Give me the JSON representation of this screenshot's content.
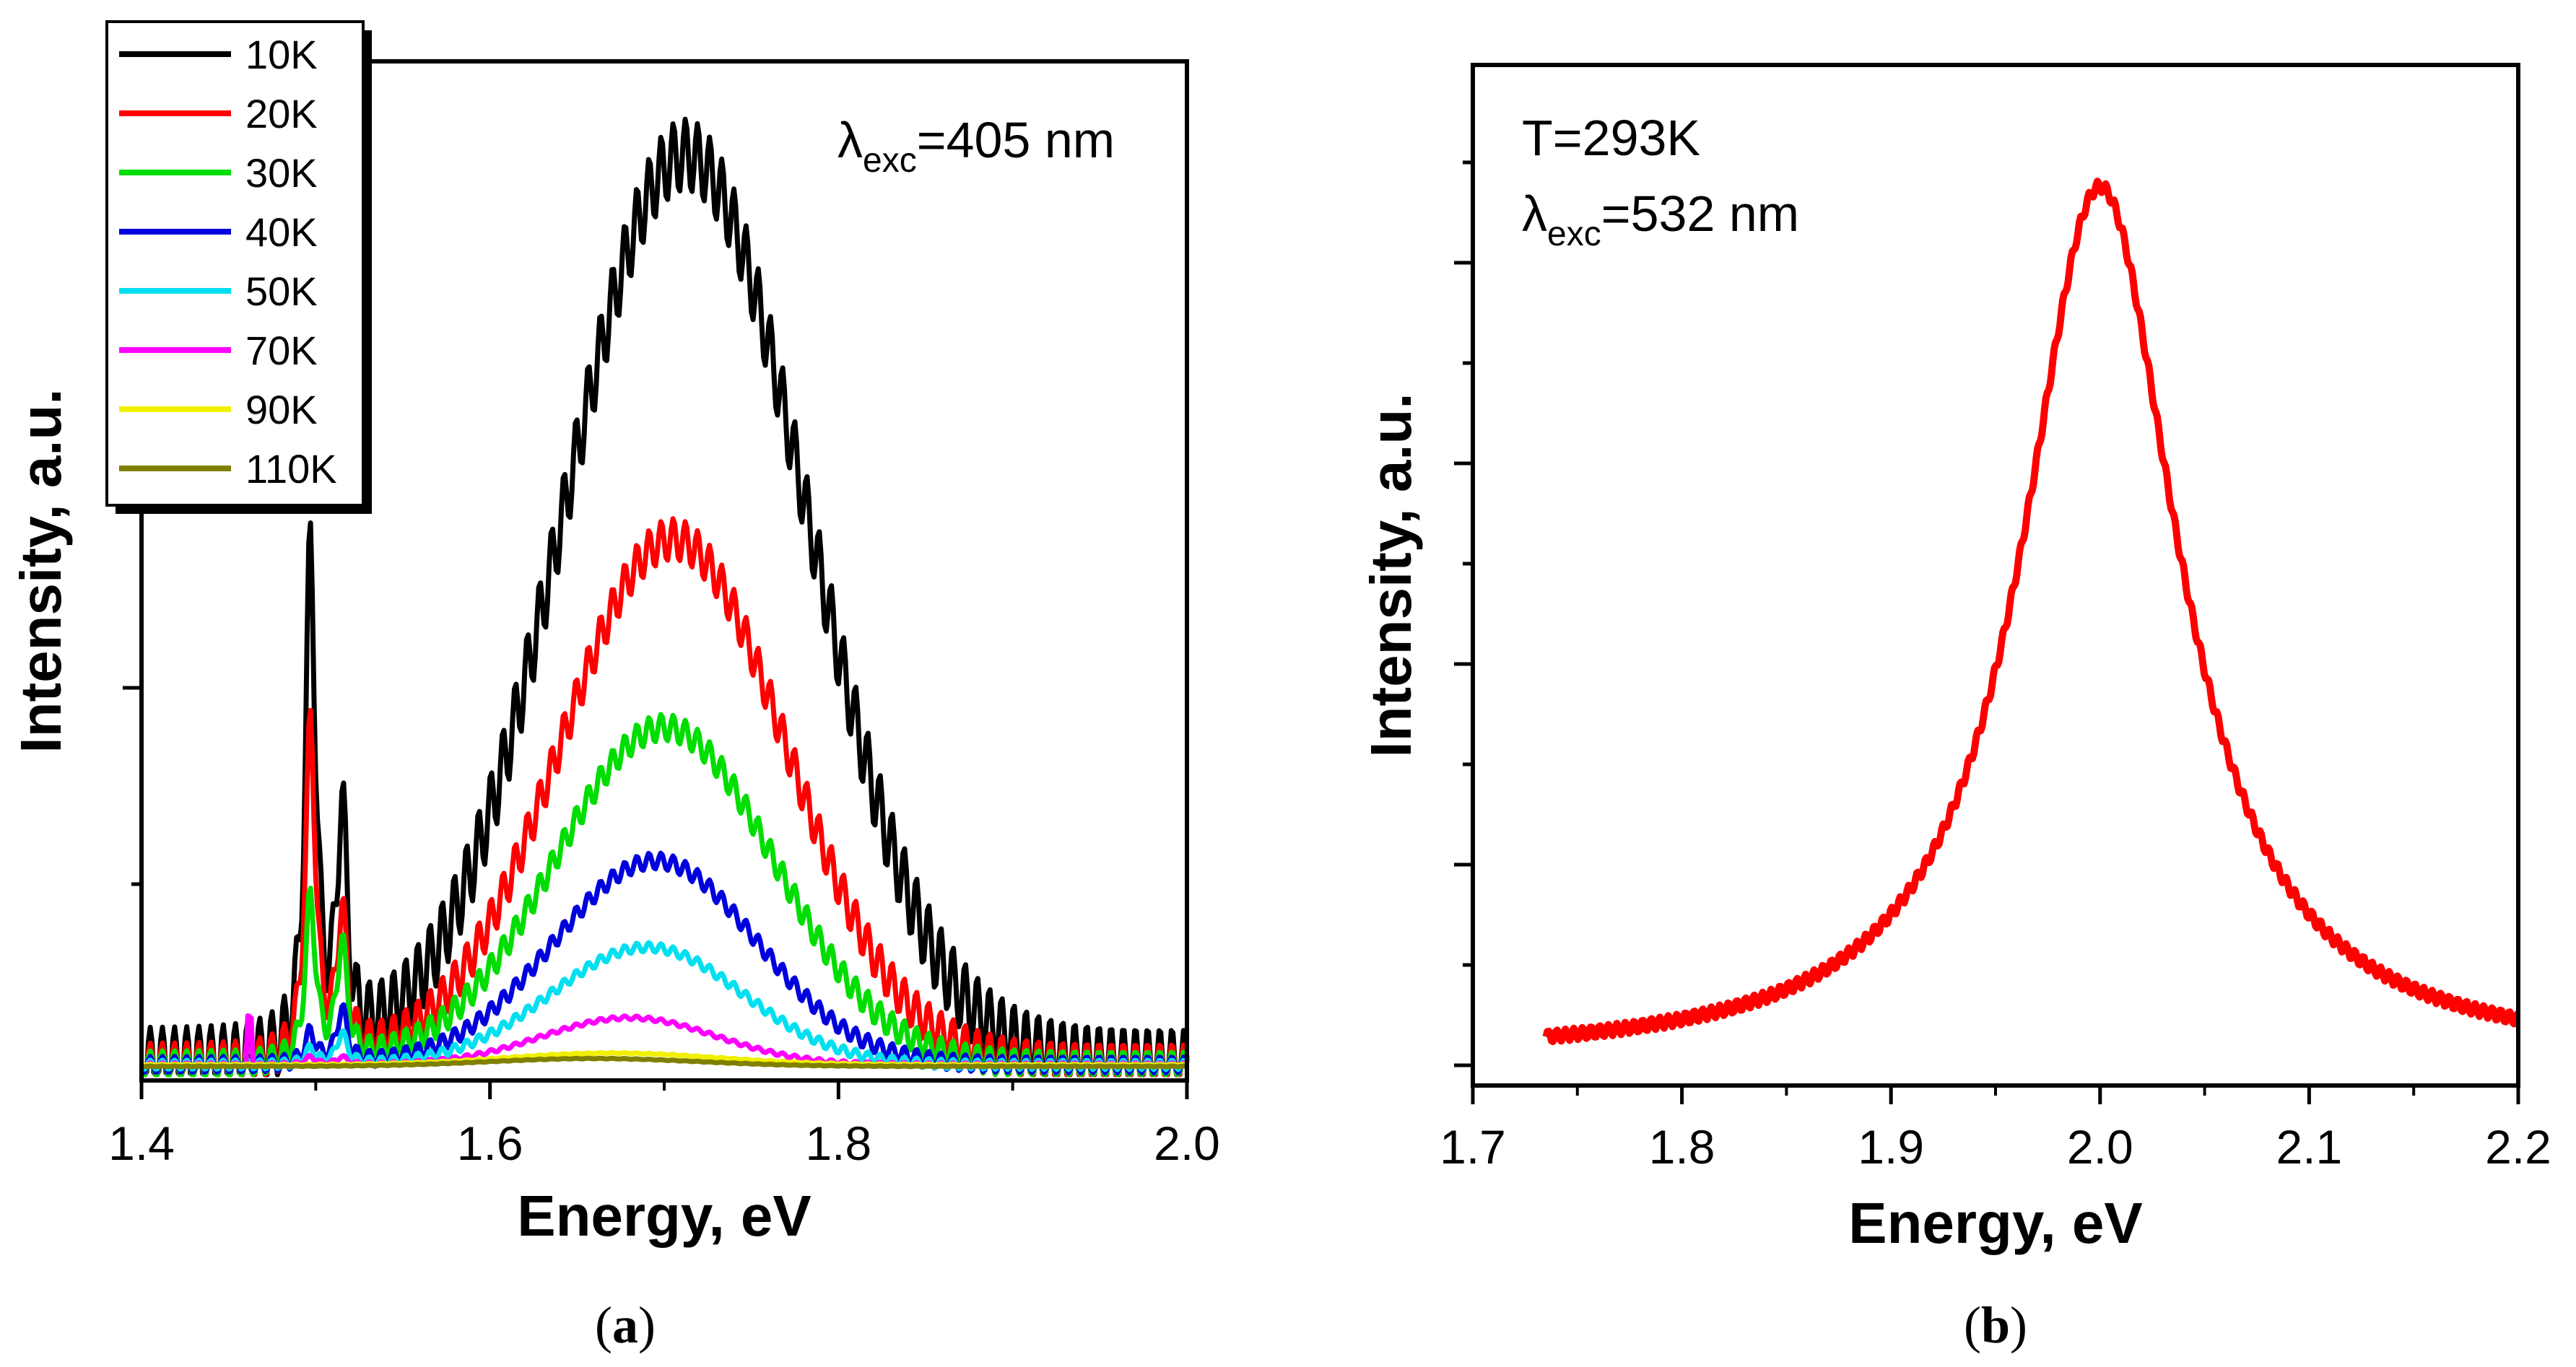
{
  "chart_data": [
    {
      "type": "line",
      "panel_label": {
        "open": "(",
        "letter": "a",
        "close": ")"
      },
      "xlabel": "Energy, eV",
      "ylabel": "Intensity, a.u.",
      "xlim": [
        1.4,
        2.0
      ],
      "ylim": [
        0,
        1.3
      ],
      "xticks": [
        1.4,
        1.6,
        1.8,
        2.0
      ],
      "xtick_labels": [
        "1.4",
        "1.6",
        "1.8",
        "2.0"
      ],
      "annotation": {
        "symbol": "λ",
        "sub": "exc",
        "text": "=405 nm"
      },
      "legend_position": "top-left",
      "series": [
        {
          "name": "10K",
          "color": "#000000",
          "baseline": 0.02,
          "peak1": 0.65,
          "peak2": 0.3,
          "broad_amp": 1.16,
          "broad_center": 1.712,
          "broad_width": 0.07,
          "step": 0.0
        },
        {
          "name": "20K",
          "color": "#ff0000",
          "baseline": 0.02,
          "peak1": 0.43,
          "peak2": 0.18,
          "broad_amp": 0.67,
          "broad_center": 1.705,
          "broad_width": 0.065,
          "step": 0.0
        },
        {
          "name": "30K",
          "color": "#00dd00",
          "baseline": 0.02,
          "peak1": 0.21,
          "peak2": 0.15,
          "broad_amp": 0.43,
          "broad_center": 1.7,
          "broad_width": 0.063,
          "step": 0.0
        },
        {
          "name": "40K",
          "color": "#0000dd",
          "baseline": 0.02,
          "peak1": 0.04,
          "peak2": 0.07,
          "broad_amp": 0.26,
          "broad_center": 1.695,
          "broad_width": 0.058,
          "step": 0.0
        },
        {
          "name": "50K",
          "color": "#00e0f0",
          "baseline": 0.02,
          "peak1": 0.02,
          "peak2": 0.04,
          "broad_amp": 0.15,
          "broad_center": 1.69,
          "broad_width": 0.055,
          "step": 0.0
        },
        {
          "name": "70K",
          "color": "#ff00ff",
          "baseline": 0.02,
          "peak1": 0.01,
          "peak2": 0.01,
          "broad_amp": 0.06,
          "broad_center": 1.68,
          "broad_width": 0.05,
          "step": 0.06
        },
        {
          "name": "90K",
          "color": "#f0f000",
          "baseline": 0.02,
          "peak1": 0.0,
          "peak2": 0.0,
          "broad_amp": 0.015,
          "broad_center": 1.67,
          "broad_width": 0.06,
          "step": 0.0
        },
        {
          "name": "110K",
          "color": "#808000",
          "baseline": 0.018,
          "peak1": 0.0,
          "peak2": 0.0,
          "broad_amp": 0.01,
          "broad_center": 1.66,
          "broad_width": 0.06,
          "step": 0.0
        }
      ]
    },
    {
      "type": "line",
      "panel_label": {
        "open": "(",
        "letter": "b",
        "close": ")"
      },
      "xlabel": "Energy, eV",
      "ylabel": "Intensity, a.u.",
      "xlim": [
        1.7,
        2.2
      ],
      "ylim": [
        0,
        1.05
      ],
      "xticks": [
        1.7,
        1.8,
        1.9,
        2.0,
        2.1,
        2.2
      ],
      "xtick_labels": [
        "1.7",
        "1.8",
        "1.9",
        "2.0",
        "2.1",
        "2.2"
      ],
      "annotation_temp": "T=293K",
      "annotation": {
        "symbol": "λ",
        "sub": "exc",
        "text": "=532 nm"
      },
      "series": [
        {
          "name": "T=293K",
          "color": "#ff0000",
          "x_start": 1.735,
          "x_end": 2.2,
          "center": 2.0,
          "width": 0.045,
          "amplitude": 0.9,
          "baseline": 0.025
        }
      ]
    }
  ]
}
